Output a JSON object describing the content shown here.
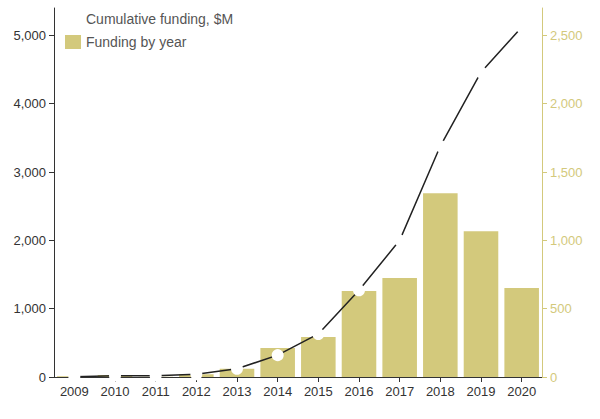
{
  "chart_data": {
    "type": "bar",
    "categories": [
      "2009",
      "2010",
      "2011",
      "2012",
      "2013",
      "2014",
      "2015",
      "2016",
      "2017",
      "2018",
      "2019",
      "2020"
    ],
    "series": [
      {
        "name": "Cumulative funding, $M",
        "type": "line",
        "color": "#222222",
        "marker": "circle",
        "values": [
          5,
          20,
          20,
          40,
          120,
          320,
          630,
          1270,
          2000,
          3380,
          4460,
          5120
        ]
      },
      {
        "name": "Funding by year",
        "type": "bar",
        "color": "#d3c97c",
        "axis": "y2",
        "values": [
          5,
          15,
          2,
          20,
          60,
          212,
          292,
          629,
          724,
          1345,
          1067,
          651
        ]
      }
    ],
    "ylim": [
      0,
      5400
    ],
    "yticks": [
      0,
      {
        "value": 1000,
        "label": "1,000"
      },
      {
        "value": 2000,
        "label": "2,000"
      },
      {
        "value": 3000,
        "label": "3,000"
      },
      {
        "value": 4000,
        "label": "4,000"
      },
      {
        "value": 5000,
        "label": "5,000"
      }
    ],
    "y2lim": [
      0,
      2700
    ],
    "y2ticks": [
      0,
      500,
      {
        "value": 1000,
        "label": "1,000"
      },
      {
        "value": 1500,
        "label": "1,500"
      },
      {
        "value": 2000,
        "label": "2,000"
      },
      {
        "value": 2500,
        "label": "2,500"
      }
    ],
    "grid": false,
    "legend": "top-left"
  }
}
